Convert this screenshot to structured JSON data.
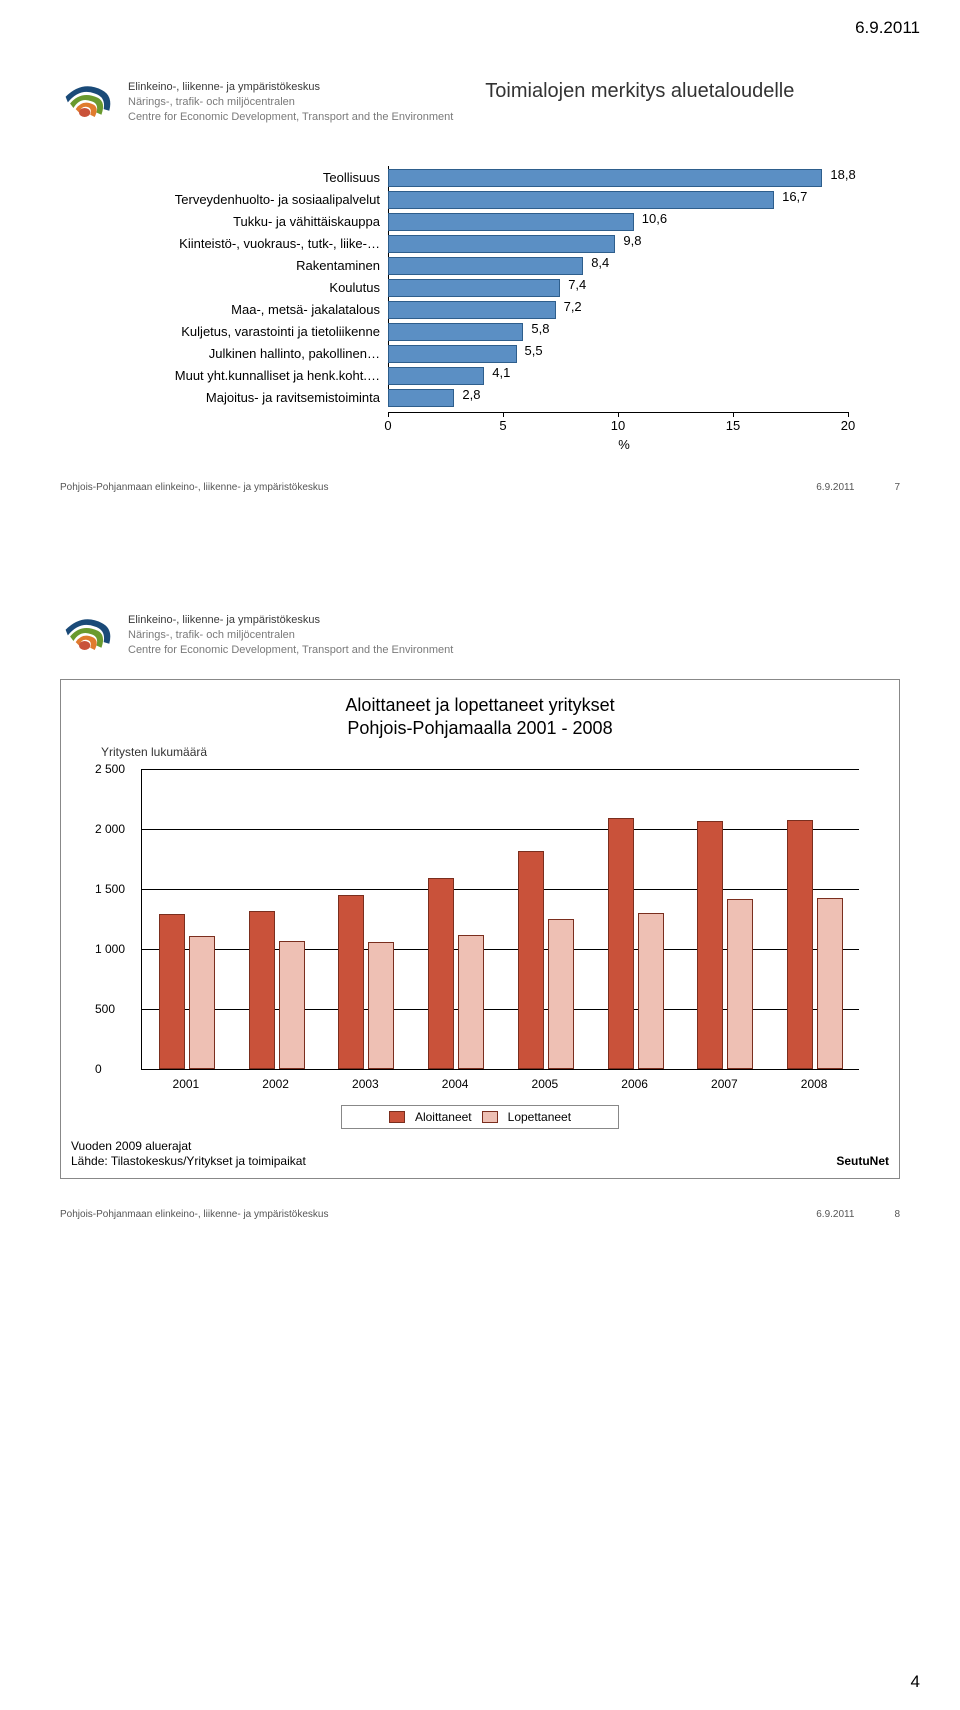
{
  "page": {
    "date": "6.9.2011",
    "number": "4"
  },
  "org": {
    "line1": "Elinkeino-, liikenne- ja ympäristökeskus",
    "line2": "Närings-, trafik- och miljöcentralen",
    "line3": "Centre for Economic Development, Transport and the Environment"
  },
  "logo": {
    "outer": "#1a4a78",
    "mid": "#6a9a2e",
    "inner1": "#e07b2e",
    "inner2": "#c9523a"
  },
  "slide1": {
    "title": "Toimialojen merkitys aluetaloudelle",
    "chart": {
      "type": "bar-horizontal",
      "categories": [
        "Teollisuus",
        "Terveydenhuolto- ja sosiaalipalvelut",
        "Tukku- ja vähittäiskauppa",
        "Kiinteistö-, vuokraus-, tutk-, liike-…",
        "Rakentaminen",
        "Koulutus",
        "Maa-, metsä- jakalatalous",
        "Kuljetus, varastointi ja tietoliikenne",
        "Julkinen hallinto, pakollinen…",
        "Muut yht.kunnalliset ja henk.koht.…",
        "Majoitus- ja ravitsemistoiminta"
      ],
      "values": [
        18.8,
        16.7,
        10.6,
        9.8,
        8.4,
        7.4,
        7.2,
        5.8,
        5.5,
        4.1,
        2.8
      ],
      "xmax": 20,
      "xticks": [
        0,
        5,
        10,
        15,
        20
      ],
      "x_unit": "%",
      "bar_fill": "#5b8fc4",
      "bar_border": "#2e5e8c",
      "label_fontsize": 13
    },
    "footer": {
      "left": "Pohjois-Pohjanmaan elinkeino-, liikenne- ja ympäristökeskus",
      "date": "6.9.2011",
      "page": "7"
    }
  },
  "slide2": {
    "chart": {
      "type": "bar-grouped",
      "title_l1": "Aloittaneet ja lopettaneet yritykset",
      "title_l2": "Pohjois-Pohjamaalla 2001 - 2008",
      "y_title": "Yritysten lukumäärä",
      "ymax": 2500,
      "yticks": [
        0,
        500,
        1000,
        1500,
        2000,
        2500
      ],
      "ytick_labels": [
        "0",
        "500",
        "1 000",
        "1 500",
        "2 000",
        "2 500"
      ],
      "years": [
        "2001",
        "2002",
        "2003",
        "2004",
        "2005",
        "2006",
        "2007",
        "2008"
      ],
      "series": [
        {
          "name": "Aloittaneet",
          "color": "#c9523a",
          "values": [
            1270,
            1300,
            1430,
            1570,
            1800,
            2070,
            2050,
            2060
          ]
        },
        {
          "name": "Lopettaneet",
          "color": "#eec0b4",
          "values": [
            1090,
            1050,
            1040,
            1100,
            1230,
            1280,
            1400,
            1410
          ]
        }
      ],
      "bar_border": "#7a2e1e",
      "plot_border": "#888888",
      "notes_l1": "Vuoden 2009 aluerajat",
      "notes_l2": "Lähde: Tilastokeskus/Yritykset ja toimipaikat",
      "source_right": "SeutuNet"
    },
    "footer": {
      "left": "Pohjois-Pohjanmaan elinkeino-, liikenne- ja ympäristökeskus",
      "date": "6.9.2011",
      "page": "8"
    }
  }
}
